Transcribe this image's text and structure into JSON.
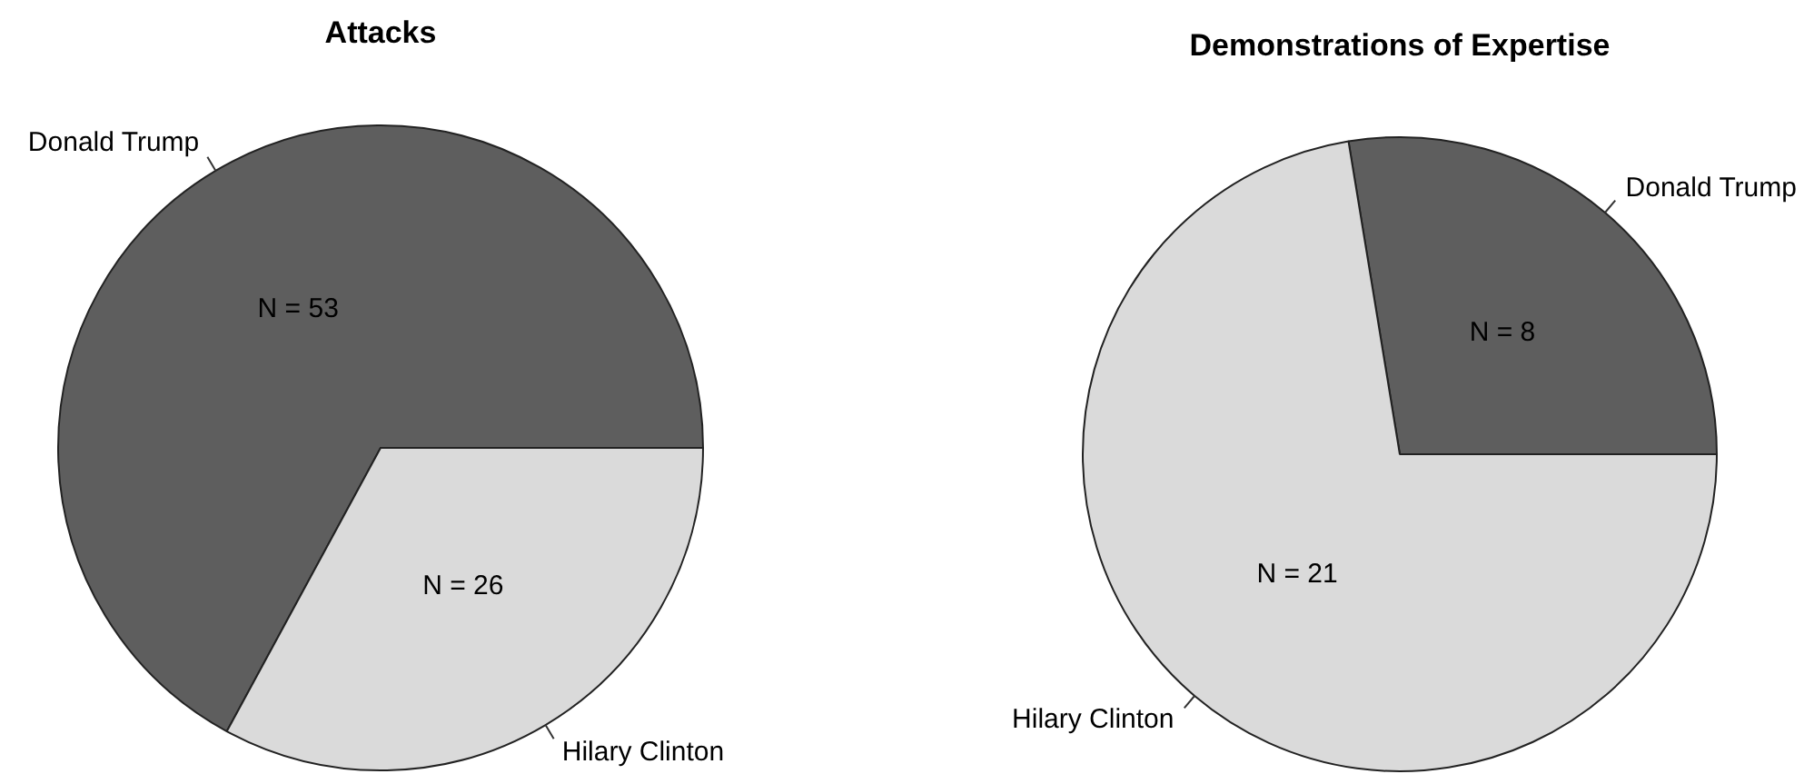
{
  "chart_data": [
    {
      "type": "pie",
      "title": "Attacks",
      "categories": [
        "Donald Trump",
        "Hilary Clinton"
      ],
      "values": [
        53,
        26
      ],
      "colors": [
        "#5e5e5e",
        "#dadada"
      ],
      "value_labels": [
        "N = 53",
        "N = 26"
      ]
    },
    {
      "type": "pie",
      "title": "Demonstrations of Expertise",
      "categories": [
        "Donald Trump",
        "Hilary Clinton"
      ],
      "values": [
        8,
        21
      ],
      "colors": [
        "#5e5e5e",
        "#dadada"
      ],
      "value_labels": [
        "N = 8",
        "N = 21"
      ]
    }
  ]
}
